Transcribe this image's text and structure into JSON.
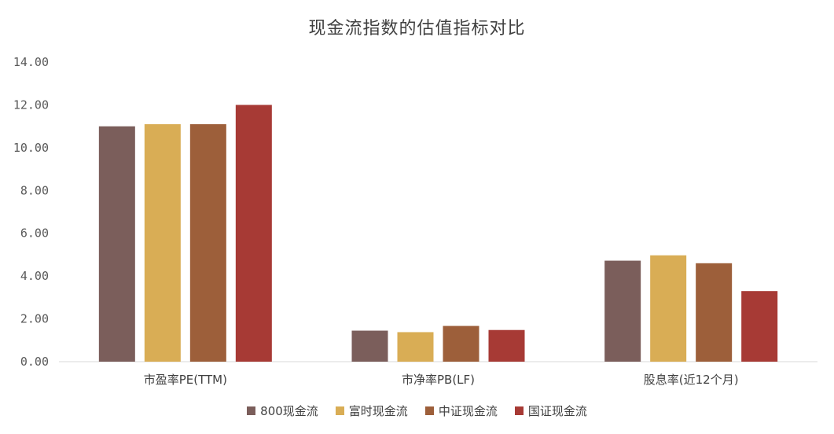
{
  "chart_data": {
    "type": "bar",
    "title": "现金流指数的估值指标对比",
    "categories": [
      "市盈率PE(TTM)",
      "市净率PB(LF)",
      "股息率(近12个月)"
    ],
    "series": [
      {
        "name": "800现金流",
        "color": "#7b5e5b",
        "values": [
          11.0,
          1.45,
          4.72
        ]
      },
      {
        "name": "富时现金流",
        "color": "#d9ad55",
        "values": [
          11.1,
          1.38,
          4.97
        ]
      },
      {
        "name": "中证现金流",
        "color": "#9d5f3a",
        "values": [
          11.1,
          1.67,
          4.6
        ]
      },
      {
        "name": "国证现金流",
        "color": "#a73a35",
        "values": [
          12.0,
          1.48,
          3.3
        ]
      }
    ],
    "ylim": [
      0,
      14
    ],
    "yticks": [
      "0.00",
      "2.00",
      "4.00",
      "6.00",
      "8.00",
      "10.00",
      "12.00",
      "14.00"
    ],
    "grid": false,
    "legend": "bottom"
  }
}
